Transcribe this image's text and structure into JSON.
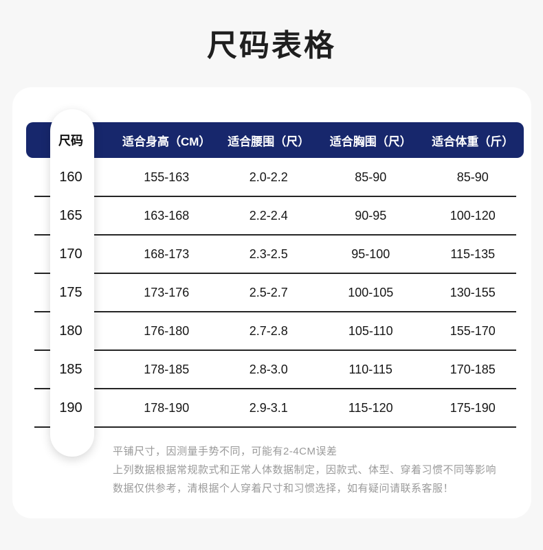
{
  "theme": {
    "page_bg": "#f7f7f7",
    "card_bg": "#ffffff",
    "header_bg": "#17276c",
    "header_text": "#ffffff",
    "row_line": "#242424",
    "text": "#161616",
    "note_text": "#9a9a9a"
  },
  "title": "尺码表格",
  "table": {
    "size_column_header": "尺码",
    "columns": [
      "适合身高（CM）",
      "适合腰围（尺）",
      "适合胸围（尺）",
      "适合体重（斤）"
    ],
    "rows": [
      {
        "size": "160",
        "height": "155-163",
        "waist": "2.0-2.2",
        "chest": "85-90",
        "weight": "85-90"
      },
      {
        "size": "165",
        "height": "163-168",
        "waist": "2.2-2.4",
        "chest": "90-95",
        "weight": "100-120"
      },
      {
        "size": "170",
        "height": "168-173",
        "waist": "2.3-2.5",
        "chest": "95-100",
        "weight": "115-135"
      },
      {
        "size": "175",
        "height": "173-176",
        "waist": "2.5-2.7",
        "chest": "100-105",
        "weight": "130-155"
      },
      {
        "size": "180",
        "height": "176-180",
        "waist": "2.7-2.8",
        "chest": "105-110",
        "weight": "155-170"
      },
      {
        "size": "185",
        "height": "178-185",
        "waist": "2.8-3.0",
        "chest": "110-115",
        "weight": "170-185"
      },
      {
        "size": "190",
        "height": "178-190",
        "waist": "2.9-3.1",
        "chest": "115-120",
        "weight": "175-190"
      }
    ]
  },
  "notes": [
    "平铺尺寸，因测量手势不同，可能有2-4CM误差",
    "上列数据根据常规款式和正常人体数据制定，因款式、体型、穿着习惯不同等影响",
    "数据仅供参考，清根据个人穿着尺寸和习惯选择，如有疑问请联系客服！"
  ]
}
